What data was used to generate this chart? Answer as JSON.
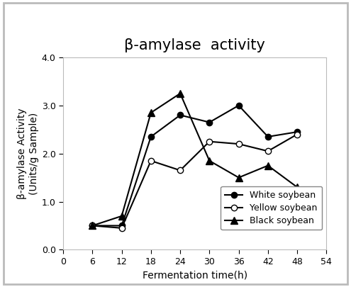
{
  "title": "β-amylase  activity",
  "xlabel": "Fermentation time(h)",
  "ylabel": "β-amylase Activity\n(Units/g Sample)",
  "x_values": [
    6,
    12,
    18,
    24,
    30,
    36,
    42,
    48
  ],
  "white_soybean": [
    0.5,
    0.5,
    2.35,
    2.8,
    2.65,
    3.0,
    2.35,
    2.45
  ],
  "yellow_soybean": [
    0.5,
    0.45,
    1.85,
    1.65,
    2.25,
    2.2,
    2.05,
    2.4
  ],
  "black_soybean": [
    0.5,
    0.7,
    2.85,
    3.25,
    1.85,
    1.5,
    1.75,
    1.3
  ],
  "ylim": [
    0.0,
    4.0
  ],
  "xlim": [
    0,
    54
  ],
  "xticks": [
    0,
    6,
    12,
    18,
    24,
    30,
    36,
    42,
    48,
    54
  ],
  "yticks": [
    0.0,
    1.0,
    2.0,
    3.0,
    4.0
  ],
  "title_fontsize": 15,
  "label_fontsize": 10,
  "tick_fontsize": 9,
  "legend_fontsize": 9,
  "line_color": "#000000",
  "spine_color": "#bbbbbb",
  "frame_color": "#bbbbbb",
  "bg_color": "#ffffff"
}
